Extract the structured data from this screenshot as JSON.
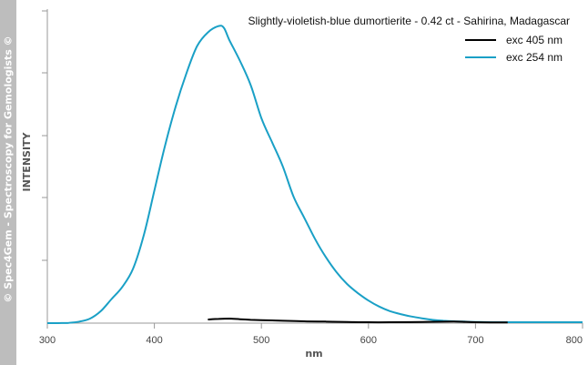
{
  "watermark": "© Spec4Gem - Spectroscopy for Gemologists ©",
  "chart_data": {
    "type": "line",
    "title": "Slightly-violetish-blue dumortierite - 0.42 ct - Sahirina, Madagascar",
    "xlabel": "nm",
    "ylabel": "INTENSITY",
    "xlim": [
      300,
      800
    ],
    "ylim": [
      0,
      100
    ],
    "x_ticks": [
      "300",
      "400",
      "500",
      "600",
      "700",
      "800"
    ],
    "grid": false,
    "legend_position": "top-right",
    "series": [
      {
        "name": "exc 405 nm",
        "color": "#000000",
        "points": [
          [
            450,
            1.2
          ],
          [
            460,
            1.4
          ],
          [
            470,
            1.5
          ],
          [
            480,
            1.3
          ],
          [
            490,
            1.1
          ],
          [
            500,
            1.0
          ],
          [
            510,
            0.9
          ],
          [
            520,
            0.8
          ],
          [
            540,
            0.6
          ],
          [
            560,
            0.5
          ],
          [
            580,
            0.4
          ],
          [
            600,
            0.3
          ],
          [
            620,
            0.3
          ],
          [
            650,
            0.4
          ],
          [
            680,
            0.5
          ],
          [
            700,
            0.3
          ],
          [
            730,
            0.2
          ]
        ]
      },
      {
        "name": "exc 254 nm",
        "color": "#1aa0c6",
        "points": [
          [
            300,
            0
          ],
          [
            310,
            0
          ],
          [
            320,
            0.1
          ],
          [
            330,
            0.5
          ],
          [
            340,
            1.5
          ],
          [
            350,
            4
          ],
          [
            360,
            8
          ],
          [
            370,
            12
          ],
          [
            380,
            18
          ],
          [
            390,
            29
          ],
          [
            400,
            44
          ],
          [
            410,
            59
          ],
          [
            420,
            72
          ],
          [
            430,
            83
          ],
          [
            440,
            92
          ],
          [
            450,
            96.5
          ],
          [
            460,
            98.6
          ],
          [
            465,
            98
          ],
          [
            470,
            94
          ],
          [
            480,
            87
          ],
          [
            490,
            79
          ],
          [
            500,
            68
          ],
          [
            510,
            60
          ],
          [
            520,
            52
          ],
          [
            530,
            42
          ],
          [
            540,
            35
          ],
          [
            550,
            28
          ],
          [
            560,
            22
          ],
          [
            570,
            17
          ],
          [
            580,
            13
          ],
          [
            590,
            10
          ],
          [
            600,
            7.5
          ],
          [
            610,
            5.5
          ],
          [
            620,
            4
          ],
          [
            630,
            3
          ],
          [
            640,
            2.2
          ],
          [
            650,
            1.6
          ],
          [
            660,
            1.1
          ],
          [
            670,
            0.8
          ],
          [
            680,
            0.6
          ],
          [
            690,
            0.5
          ],
          [
            700,
            0.4
          ],
          [
            720,
            0.3
          ],
          [
            750,
            0.3
          ],
          [
            780,
            0.3
          ],
          [
            800,
            0.3
          ]
        ]
      }
    ]
  }
}
